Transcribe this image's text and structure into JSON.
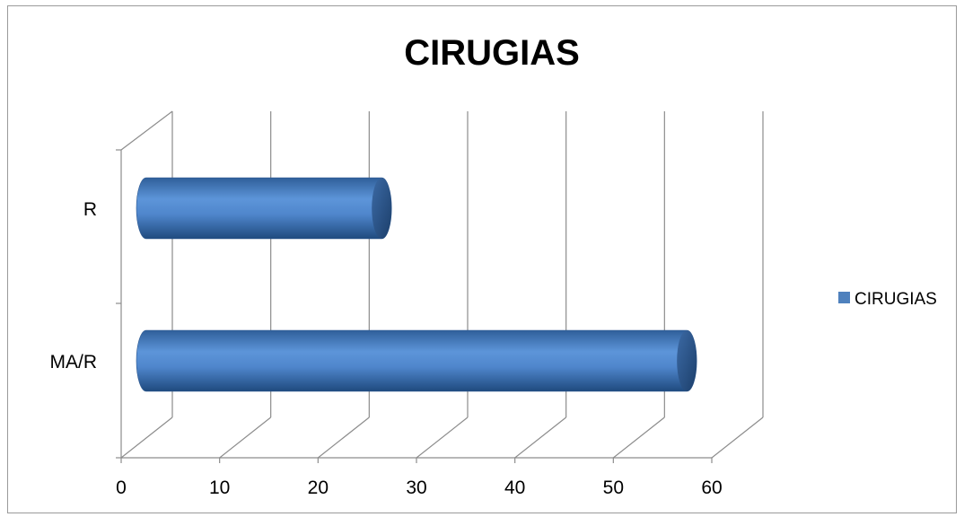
{
  "chart_data": {
    "type": "bar",
    "orientation": "horizontal",
    "style": "3d-cylinder",
    "title": "CIRUGIAS",
    "categories": [
      "MA/R",
      "R"
    ],
    "series": [
      {
        "name": "CIRUGIAS",
        "values": [
          55,
          24
        ],
        "color": "#4f81bd"
      }
    ],
    "x_ticks": [
      "0",
      "10",
      "20",
      "30",
      "40",
      "50",
      "60"
    ],
    "xlim": [
      0,
      60
    ],
    "xlabel": "",
    "ylabel": "",
    "grid": true,
    "legend_position": "right"
  }
}
